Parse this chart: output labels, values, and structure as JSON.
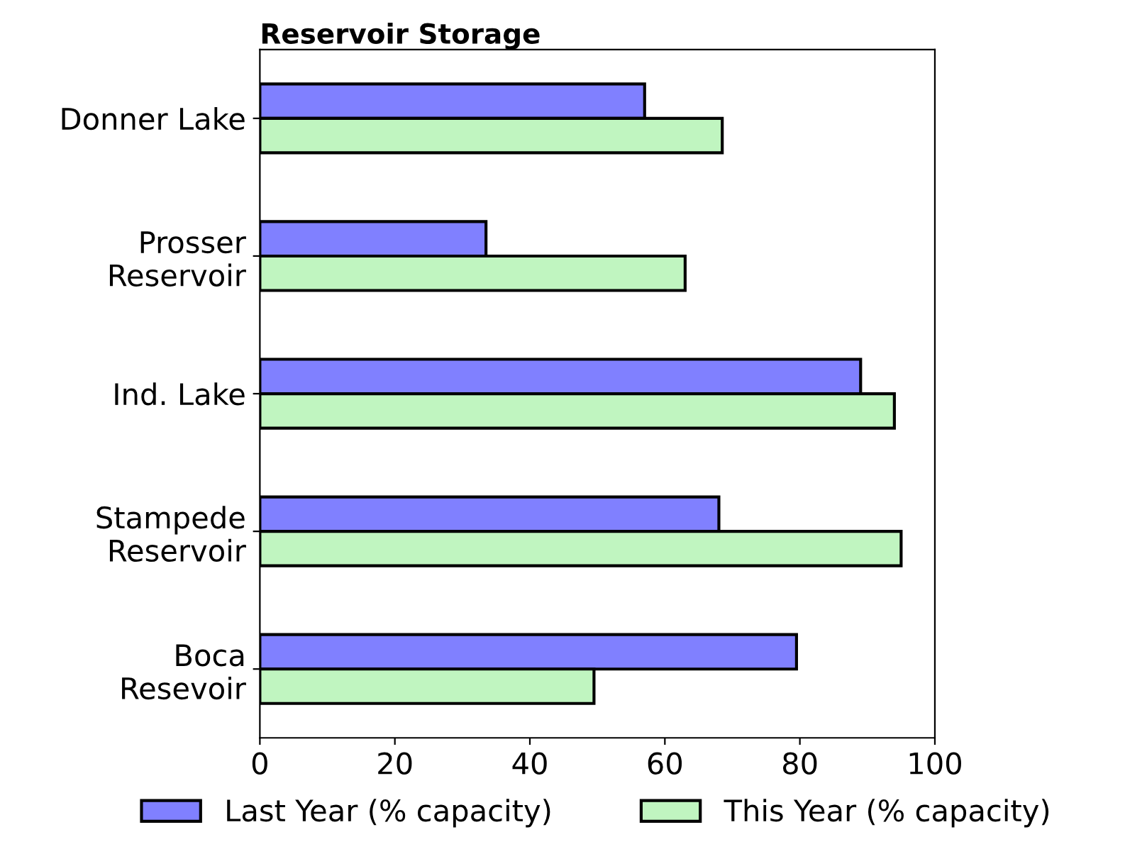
{
  "chart_data": {
    "type": "bar",
    "orientation": "horizontal",
    "title": "Reservoir Storage",
    "categories": [
      "Donner Lake",
      "Prosser\nReservoir",
      "Ind. Lake",
      "Stampede\nReservoir",
      "Boca\nResevoir"
    ],
    "series": [
      {
        "name": "Last Year (% capacity)",
        "color": "#8080ff",
        "values": [
          57,
          33.5,
          89,
          68,
          79.5
        ]
      },
      {
        "name": "This Year (% capacity)",
        "color": "#c0f5c0",
        "values": [
          68.5,
          63,
          94,
          95,
          49.5
        ]
      }
    ],
    "xlim": [
      0,
      100
    ],
    "xticks": [
      0,
      20,
      40,
      60,
      80,
      100
    ],
    "grid": false,
    "legend": "bottom"
  }
}
